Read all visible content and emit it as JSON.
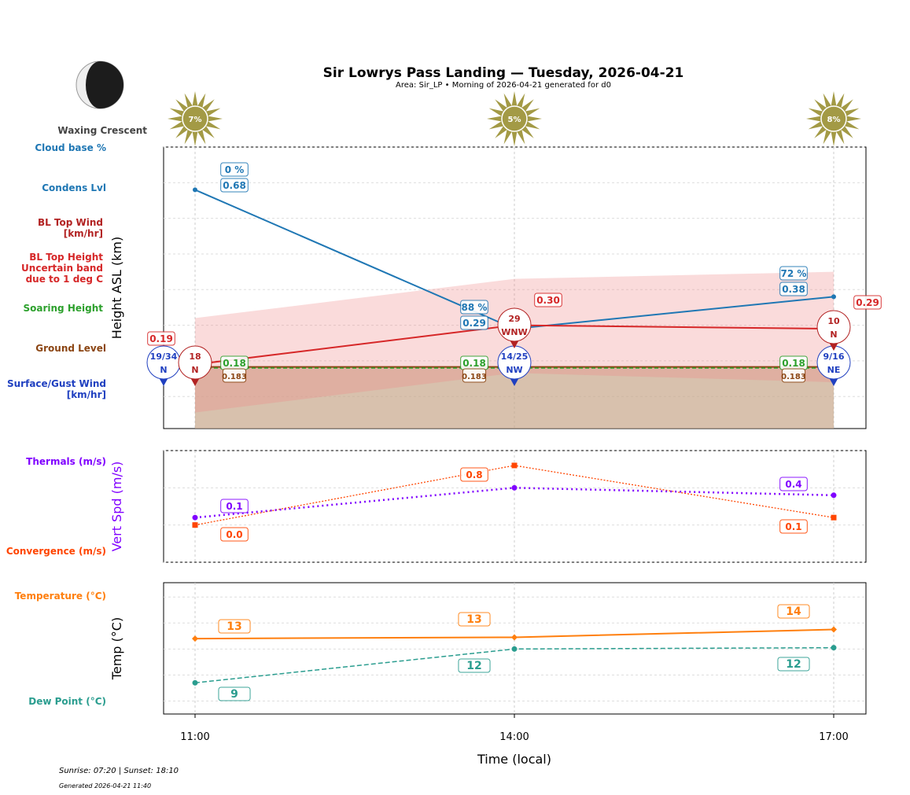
{
  "title": "Sir Lowrys Pass Landing — Tuesday, 2026-04-21",
  "subtitle": "Area: Sir_LP • Morning of 2026-04-21 generated for d0",
  "moon_phase": "Waxing Crescent",
  "footer": {
    "sun": "Sunrise: 07:20 | Sunset: 18:10",
    "generated": "Generated 2026-04-21 11:40"
  },
  "side_labels": {
    "cloud_base": "Cloud base %",
    "condens": "Condens Lvl",
    "bl_wind": "BL Top Wind [km/hr]",
    "bl_height": "BL Top Height Uncertain band due to 1 deg C",
    "soaring": "Soaring Height",
    "ground": "Ground Level",
    "surface_wind": "Surface/Gust Wind [km/hr]",
    "thermals": "Thermals (m/s)",
    "convergence": "Convergence (m/s)",
    "temperature": "Temperature (°C)",
    "dew": "Dew Point (°C)"
  },
  "colors": {
    "cloud": "#1f77b4",
    "bl": "#d62728",
    "soaring": "#2ca02c",
    "ground": "#8b4513",
    "surface": "#2040c0",
    "thermal": "#8000ff",
    "conv": "#ff4500",
    "temp": "#ff7f0e",
    "dew": "#2a9d8f",
    "sun": "#a39a45"
  },
  "chart_data": [
    {
      "type": "line",
      "xlabel": "Time (local)",
      "ylabel": "Height ASL (km)",
      "ylim": [
        0.01,
        0.8
      ],
      "categories": [
        "11:00",
        "14:00",
        "17:00"
      ],
      "yticks": [
        "0.1",
        "0.2",
        "0.3",
        "0.4",
        "0.5",
        "0.6",
        "0.7",
        "0.8"
      ],
      "grid": true,
      "sun_percent": [
        "7%",
        "5%",
        "8%"
      ],
      "condens_level": [
        0.68,
        0.29,
        0.38
      ],
      "condens_labels": [
        "0.68",
        "0.29",
        "0.38"
      ],
      "cloud_base_pct": [
        "0 %",
        "88 %",
        "72 %"
      ],
      "bl_top_height": [
        0.19,
        0.3,
        0.29
      ],
      "bl_top_labels": [
        "0.19",
        "0.30",
        "0.29"
      ],
      "bl_band_upper": [
        0.32,
        0.43,
        0.45
      ],
      "bl_band_lower": [
        0.055,
        0.166,
        0.14
      ],
      "soaring_height": [
        0.18,
        0.18,
        0.18
      ],
      "soaring_labels": [
        "0.18",
        "0.18",
        "0.18"
      ],
      "ground_level": [
        0.183,
        0.183,
        0.183
      ],
      "ground_labels": [
        "0.183",
        "0.183",
        "0.183"
      ],
      "surface_wind": [
        {
          "speed": "19/34",
          "dir": "N"
        },
        {
          "speed": "14/25",
          "dir": "NW"
        },
        {
          "speed": "9/16",
          "dir": "NE"
        }
      ],
      "bl_top_wind": [
        {
          "speed": "18",
          "dir": "N"
        },
        {
          "speed": "29",
          "dir": "WNW"
        },
        {
          "speed": "10",
          "dir": "N"
        }
      ]
    },
    {
      "type": "line",
      "ylabel": "Vert Spd (m/s)",
      "ylim": [
        -0.5,
        1.0
      ],
      "yticks": [
        "−0.5",
        "0.0",
        "0.5",
        "1.0"
      ],
      "thermals": [
        0.1,
        0.5,
        0.4
      ],
      "thermal_labels": [
        "0.1",
        "",
        "0.4"
      ],
      "convergence": [
        0.0,
        0.8,
        0.1
      ],
      "conv_labels": [
        "0.0",
        "0.8",
        "0.1"
      ]
    },
    {
      "type": "line",
      "ylabel": "Temp (°C)",
      "ylim": [
        7,
        17.1
      ],
      "yticks": [
        "8",
        "10",
        "12",
        "14",
        "16"
      ],
      "temperature": [
        12.8,
        12.9,
        13.5
      ],
      "temp_labels": [
        "13",
        "13",
        "14"
      ],
      "dew_point": [
        9.4,
        12.0,
        12.1
      ],
      "dew_labels": [
        "9",
        "12",
        "12"
      ]
    }
  ]
}
